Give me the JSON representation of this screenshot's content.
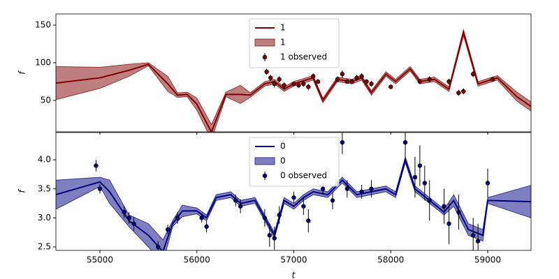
{
  "chart_data": [
    {
      "type": "line",
      "ylabel": "f",
      "legend": "upper center",
      "xlim": [
        54546,
        59447
      ],
      "ylim": [
        8.3,
        164.8
      ],
      "yticks": [
        50,
        100,
        150
      ],
      "x": [
        54546,
        55000,
        55300,
        55500,
        55700,
        55800,
        55900,
        56000,
        56150,
        56300,
        56450,
        56550,
        56700,
        56800,
        56900,
        57000,
        57200,
        57300,
        57450,
        57600,
        57700,
        57800,
        57950,
        58050,
        58200,
        58300,
        58450,
        58600,
        58750,
        58900,
        59100,
        59300,
        59447
      ],
      "series": [
        {
          "name": "1",
          "color": "#800000",
          "values": [
            73,
            80,
            90,
            98,
            72,
            57,
            58,
            45,
            8,
            58,
            58,
            57,
            72,
            75,
            65,
            72,
            80,
            50,
            78,
            75,
            80,
            60,
            85,
            75,
            92,
            75,
            78,
            65,
            140,
            72,
            80,
            55,
            42
          ]
        },
        {
          "name": "1",
          "color": "#800000",
          "lower": [
            51,
            66,
            82,
            96,
            62,
            54,
            55,
            37,
            -2,
            55,
            46,
            54,
            69,
            72,
            62,
            69,
            77,
            47,
            75,
            72,
            77,
            57,
            82,
            72,
            89,
            72,
            75,
            62,
            136,
            69,
            77,
            49,
            36
          ],
          "upper": [
            95,
            94,
            98,
            100,
            82,
            60,
            61,
            53,
            18,
            61,
            70,
            60,
            75,
            78,
            68,
            75,
            83,
            53,
            81,
            78,
            83,
            63,
            88,
            78,
            95,
            78,
            81,
            68,
            144,
            75,
            83,
            61,
            48
          ]
        },
        {
          "name": "1 observed",
          "color": "#800000",
          "x": [
            56720,
            56760,
            56800,
            56850,
            56900,
            57000,
            57050,
            57100,
            57150,
            57200,
            57250,
            57450,
            57500,
            57550,
            57600,
            57650,
            57700,
            57750,
            57800,
            58000,
            58300,
            58400,
            58600,
            58700,
            58750,
            58850,
            59050
          ],
          "values": [
            88,
            80,
            72,
            78,
            70,
            72,
            70,
            72,
            68,
            82,
            75,
            78,
            85,
            75,
            75,
            80,
            82,
            75,
            72,
            68,
            75,
            78,
            75,
            60,
            62,
            85,
            78
          ],
          "errors": [
            4,
            4,
            5,
            4,
            4,
            3,
            3,
            4,
            4,
            4,
            3,
            4,
            5,
            3,
            3,
            4,
            4,
            3,
            4,
            3,
            3,
            4,
            4,
            4,
            4,
            4,
            3
          ]
        }
      ]
    },
    {
      "type": "line",
      "ylabel": "f",
      "xlabel": "t",
      "legend": "upper center",
      "xlim": [
        54546,
        59447
      ],
      "ylim": [
        2.44,
        4.47
      ],
      "yticks": [
        2.5,
        {
          "value": 3,
          "label": "3.0"
        },
        3.5,
        {
          "value": 4,
          "label": "4.0"
        }
      ],
      "xticks": [
        55000,
        56000,
        57000,
        58000,
        59000
      ],
      "x": [
        54546,
        55000,
        55100,
        55300,
        55500,
        55650,
        55750,
        55850,
        56000,
        56100,
        56200,
        56350,
        56450,
        56600,
        56700,
        56800,
        56900,
        57000,
        57100,
        57200,
        57350,
        57500,
        57650,
        57800,
        57950,
        58050,
        58150,
        58250,
        58400,
        58550,
        58650,
        58800,
        58950,
        59000,
        59447
      ],
      "series": [
        {
          "name": "0",
          "color": "#000080",
          "values": [
            3.4,
            3.62,
            3.45,
            2.95,
            2.7,
            2.42,
            2.9,
            3.12,
            3.12,
            3.0,
            3.35,
            3.4,
            3.25,
            3.3,
            3.0,
            2.7,
            3.3,
            3.2,
            3.35,
            3.45,
            3.4,
            3.65,
            3.4,
            3.45,
            3.5,
            3.4,
            4.0,
            3.5,
            3.3,
            3.1,
            3.3,
            2.8,
            2.7,
            3.3,
            3.28
          ]
        },
        {
          "name": "0",
          "color": "#000080",
          "lower": [
            3.15,
            3.54,
            3.25,
            2.85,
            2.5,
            2.22,
            2.85,
            3.02,
            3.07,
            2.95,
            3.3,
            3.35,
            3.2,
            3.25,
            2.95,
            2.65,
            3.25,
            3.15,
            3.3,
            3.4,
            3.35,
            3.6,
            3.35,
            3.4,
            3.45,
            3.35,
            3.95,
            3.45,
            3.25,
            3.05,
            3.2,
            2.7,
            2.6,
            3.25,
            3.0
          ],
          "upper": [
            3.65,
            3.7,
            3.65,
            3.05,
            2.9,
            2.62,
            2.95,
            3.22,
            3.17,
            3.05,
            3.4,
            3.45,
            3.3,
            3.35,
            3.05,
            2.75,
            3.35,
            3.25,
            3.4,
            3.5,
            3.45,
            3.7,
            3.45,
            3.5,
            3.55,
            3.45,
            4.05,
            3.55,
            3.35,
            3.15,
            3.4,
            2.9,
            2.8,
            3.35,
            3.56
          ]
        },
        {
          "name": "0 observed",
          "color": "#000080",
          "x": [
            54960,
            55000,
            55250,
            55300,
            55350,
            55600,
            55700,
            55800,
            56050,
            56100,
            56400,
            56450,
            56700,
            56750,
            56800,
            56850,
            57000,
            57100,
            57150,
            57300,
            57400,
            57500,
            57550,
            57700,
            57800,
            58150,
            58250,
            58300,
            58350,
            58400,
            58550,
            58600,
            58700,
            58850,
            58900,
            59000
          ],
          "values": [
            3.9,
            3.5,
            3.1,
            3.0,
            2.9,
            2.5,
            2.8,
            3.0,
            3.0,
            2.85,
            3.3,
            3.2,
            3.0,
            2.7,
            2.65,
            3.05,
            3.35,
            3.2,
            2.95,
            3.5,
            3.3,
            4.3,
            3.5,
            3.45,
            3.5,
            4.3,
            3.7,
            3.9,
            3.6,
            3.3,
            3.2,
            2.9,
            3.1,
            2.7,
            2.6,
            3.6
          ],
          "errors": [
            0.1,
            0.08,
            0.1,
            0.1,
            0.12,
            0.1,
            0.08,
            0.1,
            0.08,
            0.1,
            0.1,
            0.12,
            0.15,
            0.2,
            0.2,
            0.15,
            0.1,
            0.15,
            0.2,
            0.1,
            0.15,
            0.2,
            0.15,
            0.12,
            0.15,
            0.3,
            0.35,
            0.35,
            0.3,
            0.35,
            0.3,
            0.35,
            0.3,
            0.3,
            0.3,
            0.25
          ]
        }
      ]
    }
  ]
}
